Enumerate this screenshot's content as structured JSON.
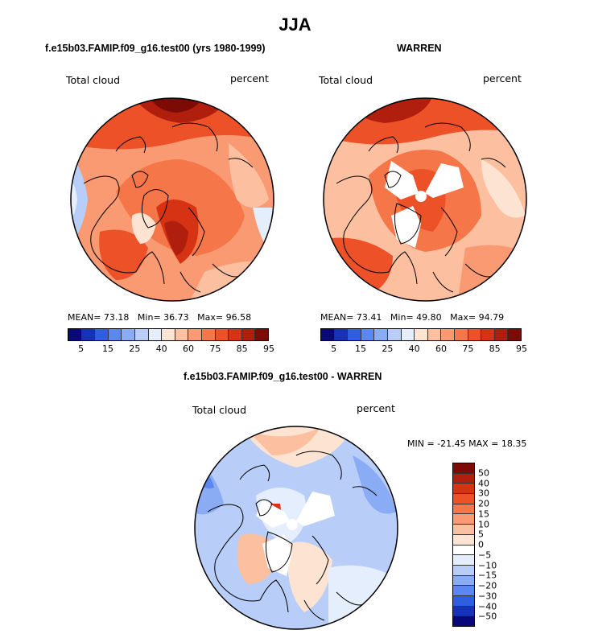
{
  "figure": {
    "title": "JJA"
  },
  "chart_data": [
    {
      "type": "heatmap",
      "projection": "north polar stereographic",
      "title": "f.e15b03.FAMIP.f09_g16.test00 (yrs 1980-1999)",
      "variable": "Total cloud",
      "units": "percent",
      "stats": {
        "mean_label": "MEAN=",
        "mean": "73.18",
        "min_label": "Min=",
        "min": "36.73",
        "max_label": "Max=",
        "max": "96.58"
      },
      "colorbar_labels": [
        "5",
        "15",
        "25",
        "40",
        "60",
        "75",
        "85",
        "95"
      ]
    },
    {
      "type": "heatmap",
      "projection": "north polar stereographic",
      "title": "WARREN",
      "variable": "Total cloud",
      "units": "percent",
      "stats": {
        "mean_label": "MEAN=",
        "mean": "73.41",
        "min_label": "Min=",
        "min": "49.80",
        "max_label": "Max=",
        "max": "94.79"
      },
      "colorbar_labels": [
        "5",
        "15",
        "25",
        "40",
        "60",
        "75",
        "85",
        "95"
      ]
    },
    {
      "type": "heatmap",
      "projection": "north polar stereographic",
      "title": "f.e15b03.FAMIP.f09_g16.test00 - WARREN",
      "variable": "Total cloud",
      "units": "percent",
      "stats_text": "MIN = -21.45 MAX =   18.35",
      "colorbar_labels": [
        "50",
        "40",
        "30",
        "20",
        "15",
        "10",
        "5",
        "0",
        "−5",
        "−10",
        "−15",
        "−20",
        "−30",
        "−40",
        "−50"
      ]
    }
  ],
  "colors": {
    "abs_scale": [
      "#08087a",
      "#1532b8",
      "#2f5fe0",
      "#5a88f0",
      "#8aacf4",
      "#b8cef8",
      "#e4eefc",
      "#fde3d2",
      "#fcc0a0",
      "#f99a72",
      "#f57648",
      "#ed5128",
      "#d63315",
      "#b01e0e",
      "#7d0b05"
    ],
    "diff_scale": [
      "#7d0b05",
      "#b01e0e",
      "#d63315",
      "#ed5128",
      "#f57648",
      "#f99a72",
      "#fcc0a0",
      "#fde3d2",
      "#e4eefc",
      "#b8cef8",
      "#8aacf4",
      "#5a88f0",
      "#2f5fe0",
      "#1532b8",
      "#08087a"
    ]
  }
}
